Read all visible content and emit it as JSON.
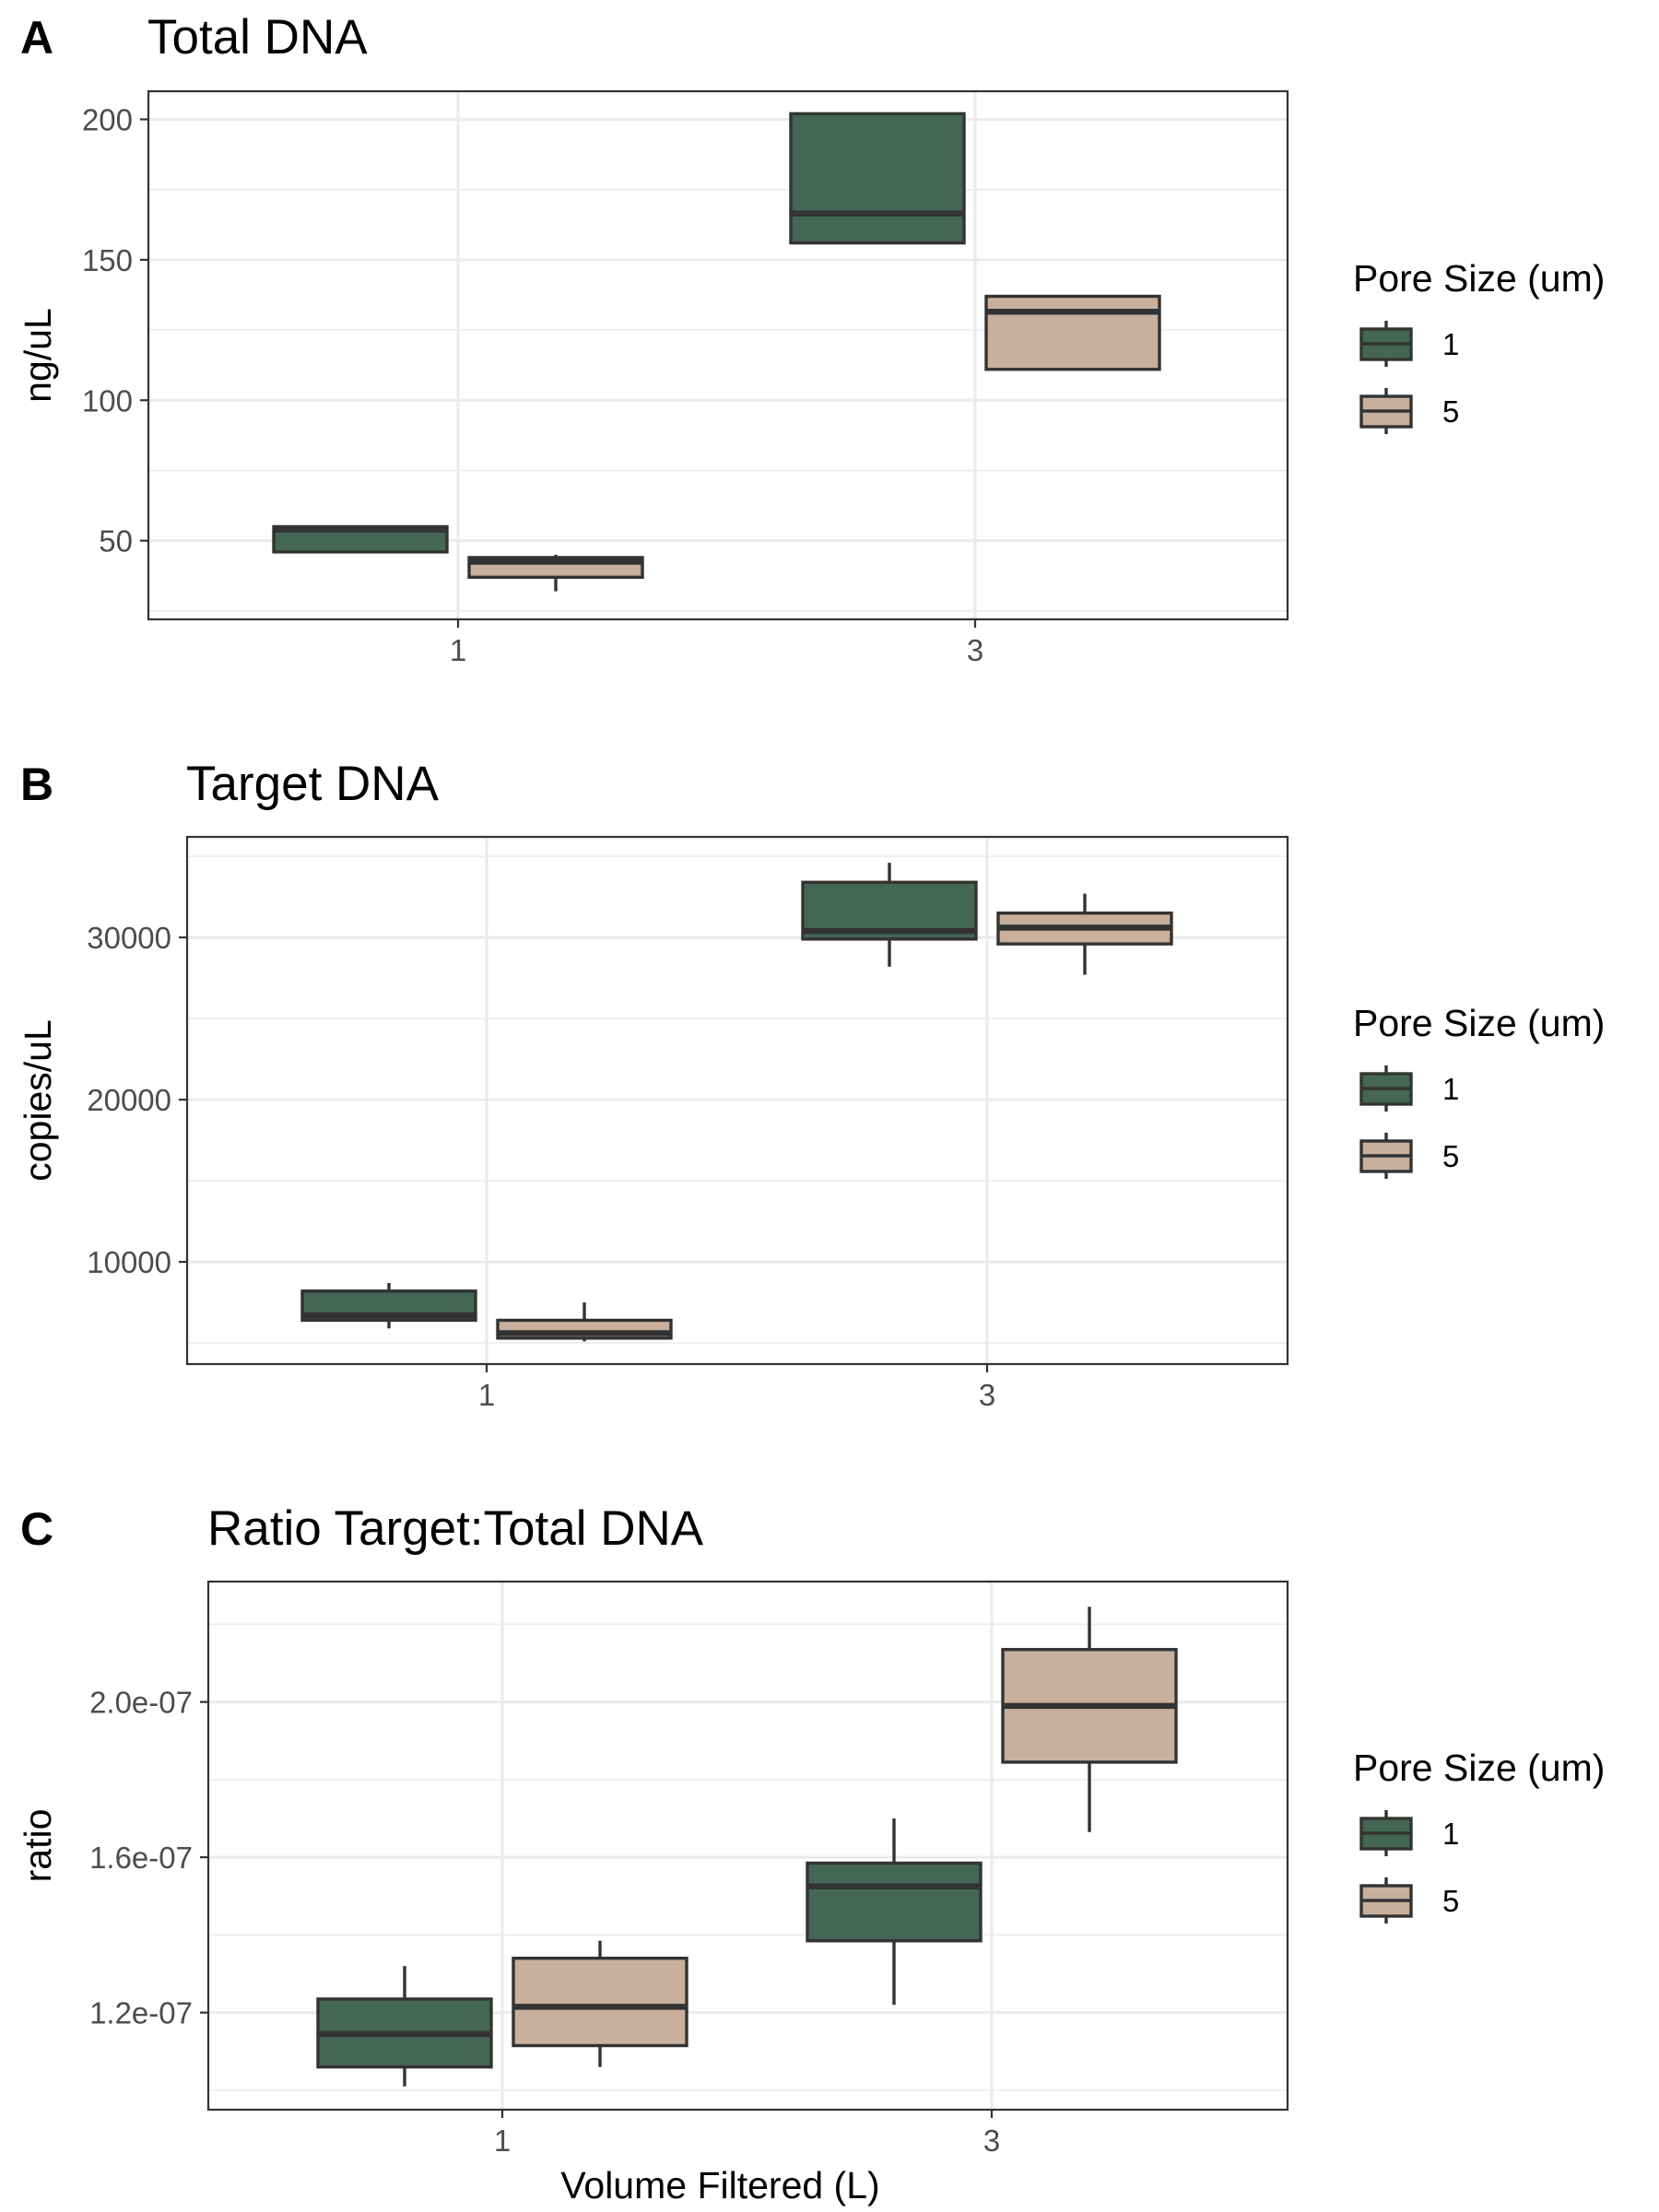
{
  "legend": {
    "title": "Pore Size (um)",
    "items": [
      {
        "label": "1",
        "color": "#446655"
      },
      {
        "label": "5",
        "color": "#c8b09c"
      }
    ]
  },
  "chart_data": [
    {
      "panel": "A",
      "type": "box",
      "title": "Total DNA",
      "xlabel": "",
      "ylabel": "ng/uL",
      "categories": [
        "1",
        "3"
      ],
      "ylim": [
        22,
        210
      ],
      "yticks": [
        50,
        100,
        150,
        200
      ],
      "ytick_labels": [
        "50",
        "100",
        "150",
        "200"
      ],
      "yminor": [
        25,
        75,
        125,
        175
      ],
      "series": [
        {
          "name": "1",
          "color": "#446655",
          "boxes": [
            {
              "min": 46,
              "q1": 46,
              "median": 54,
              "q3": 55,
              "max": 55
            },
            {
              "min": 156,
              "q1": 156,
              "median": 166.5,
              "q3": 202,
              "max": 202
            }
          ]
        },
        {
          "name": "5",
          "color": "#c8b09c",
          "boxes": [
            {
              "min": 32,
              "q1": 37,
              "median": 42.5,
              "q3": 44,
              "max": 45
            },
            {
              "min": 111,
              "q1": 111,
              "median": 131.5,
              "q3": 137,
              "max": 137
            }
          ]
        }
      ]
    },
    {
      "panel": "B",
      "type": "box",
      "title": "Target DNA",
      "xlabel": "",
      "ylabel": "copies/uL",
      "categories": [
        "1",
        "3"
      ],
      "ylim": [
        3700,
        36200
      ],
      "yticks": [
        10000,
        20000,
        30000
      ],
      "ytick_labels": [
        "10000",
        "20000",
        "30000"
      ],
      "yminor": [
        5000,
        15000,
        25000,
        35000
      ],
      "series": [
        {
          "name": "1",
          "color": "#446655",
          "boxes": [
            {
              "min": 5900,
              "q1": 6400,
              "median": 6700,
              "q3": 8200,
              "max": 8700
            },
            {
              "min": 28200,
              "q1": 29900,
              "median": 30400,
              "q3": 33400,
              "max": 34600
            }
          ]
        },
        {
          "name": "5",
          "color": "#c8b09c",
          "boxes": [
            {
              "min": 5100,
              "q1": 5300,
              "median": 5600,
              "q3": 6400,
              "max": 7500
            },
            {
              "min": 27700,
              "q1": 29600,
              "median": 30600,
              "q3": 31500,
              "max": 32700
            }
          ]
        }
      ]
    },
    {
      "panel": "C",
      "type": "box",
      "title": "Ratio Target:Total DNA",
      "xlabel": "Volume Filtered (L)",
      "ylabel": "ratio",
      "categories": [
        "1",
        "3"
      ],
      "ylim": [
        9.5e-08,
        2.31e-07
      ],
      "yticks": [
        1.2e-07,
        1.6e-07,
        2e-07
      ],
      "ytick_labels": [
        "1.2e-07",
        "1.6e-07",
        "2.0e-07"
      ],
      "yminor": [
        1e-07,
        1.4e-07,
        1.8e-07,
        2.2e-07
      ],
      "series": [
        {
          "name": "1",
          "color": "#446655",
          "boxes": [
            {
              "min": 1.01e-07,
              "q1": 1.06e-07,
              "median": 1.145e-07,
              "q3": 1.235e-07,
              "max": 1.32e-07
            },
            {
              "min": 1.22e-07,
              "q1": 1.385e-07,
              "median": 1.525e-07,
              "q3": 1.585e-07,
              "max": 1.7e-07
            }
          ]
        },
        {
          "name": "5",
          "color": "#c8b09c",
          "boxes": [
            {
              "min": 1.06e-07,
              "q1": 1.115e-07,
              "median": 1.215e-07,
              "q3": 1.34e-07,
              "max": 1.385e-07
            },
            {
              "min": 1.665e-07,
              "q1": 1.845e-07,
              "median": 1.99e-07,
              "q3": 2.135e-07,
              "max": 2.245e-07
            }
          ]
        }
      ]
    }
  ]
}
